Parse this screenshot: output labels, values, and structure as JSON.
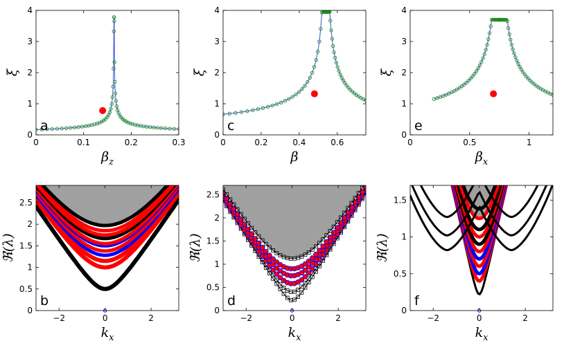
{
  "figure_title": "",
  "chart_data": [
    {
      "panel": "a",
      "type": "scatter",
      "xlabel": "β",
      "xlabel_sub": "z",
      "ylabel": "ξ",
      "xlim": [
        0,
        0.3
      ],
      "ylim": [
        0,
        4
      ],
      "xticks": [
        "0",
        "0.1",
        "0.2",
        "0.3"
      ],
      "yticks": [
        "0",
        "1",
        "2",
        "3",
        "4"
      ],
      "critical_x": 0.164,
      "peak_y": 3.78,
      "marker": {
        "x": 0.14,
        "y": 0.78
      },
      "series": [
        {
          "name": "xi",
          "color": "#3c50e0",
          "marker_color": "#228b22",
          "style": "line+circles"
        }
      ],
      "curve_params": {
        "amplitude": 0.125,
        "exponent": 0.5,
        "n_points": 60
      }
    },
    {
      "panel": "c",
      "type": "scatter",
      "xlabel": "β",
      "xlabel_sub": "",
      "ylabel": "ξ",
      "xlim": [
        0,
        0.75
      ],
      "ylim": [
        0,
        4
      ],
      "xticks": [
        "0",
        "0.2",
        "0.4",
        "0.6"
      ],
      "yticks": [
        "0",
        "1",
        "2",
        "3",
        "4"
      ],
      "critical_x": 0.54,
      "peak_y": 3.95,
      "marker": {
        "x": 0.48,
        "y": 1.32
      },
      "series": [
        {
          "name": "xi",
          "color": "#3c50e0",
          "marker_color": "#228b22",
          "style": "line+circles"
        }
      ],
      "curve_params": {
        "amplitude": 0.55,
        "exponent": 0.55,
        "n_points": 70
      }
    },
    {
      "panel": "e",
      "type": "scatter",
      "xlabel": "β",
      "xlabel_sub": "x",
      "ylabel": "ξ",
      "xlim": [
        0,
        1.2
      ],
      "ylim": [
        0,
        4
      ],
      "xticks": [
        "0",
        "0.5",
        "1"
      ],
      "yticks": [
        "0",
        "1",
        "2",
        "3",
        "4"
      ],
      "critical_x": 0.75,
      "peak_y": 3.7,
      "x_start": 0.2,
      "marker": {
        "x": 0.7,
        "y": 1.32
      },
      "series": [
        {
          "name": "xi",
          "color": "#3c50e0",
          "marker_color": "#228b22",
          "style": "line+circles"
        }
      ],
      "curve_params": {
        "amplitude": 0.75,
        "exponent": 0.55,
        "n_points": 90
      }
    },
    {
      "panel": "b",
      "type": "area",
      "xlabel": "k",
      "xlabel_sub": "x",
      "ylabel": "ℜ(λ)",
      "xlim": [
        -3,
        3.2
      ],
      "ylim": [
        0,
        2.9
      ],
      "xticks": [
        "−2",
        "0",
        "2"
      ],
      "yticks": [
        "0",
        "0.5",
        "1",
        "1.5",
        "2",
        "2.5"
      ],
      "continuum_start": 2.0,
      "continuum_color": "#a0a0a0",
      "bands": [
        {
          "gap": 0.5,
          "color": "#000000",
          "width": 6
        },
        {
          "gap": 1.0,
          "color": "#ff0000",
          "width": 6
        },
        {
          "gap": 1.15,
          "color": "#ff0000",
          "width": 6
        },
        {
          "gap": 1.28,
          "color": "#0000ff",
          "width": 5
        },
        {
          "gap": 1.38,
          "color": "#ff0000",
          "width": 5
        },
        {
          "gap": 1.5,
          "color": "#0000ff",
          "width": 5
        },
        {
          "gap": 1.55,
          "color": "#ff0000",
          "width": 5
        },
        {
          "gap": 1.67,
          "color": "#000000",
          "width": 5
        },
        {
          "gap": 1.75,
          "color": "#ff0000",
          "width": 5
        },
        {
          "gap": 1.85,
          "color": "#ff0000",
          "width": 5
        },
        {
          "gap": 1.97,
          "color": "#000000",
          "width": 5
        }
      ]
    },
    {
      "panel": "d",
      "type": "area",
      "xlabel": "k",
      "xlabel_sub": "x",
      "ylabel": "ℜ(λ)",
      "xlim": [
        -3,
        3.2
      ],
      "ylim": [
        0,
        2.7
      ],
      "xticks": [
        "−2",
        "0",
        "2"
      ],
      "yticks": [
        "0",
        "0.5",
        "1",
        "1.5",
        "2",
        "2.5"
      ],
      "continuum_start": 1.12,
      "continuum_color": "#a0a0a0",
      "bands": [
        {
          "gap": 0.22,
          "color": "#000000",
          "width": 1,
          "marker": "open-square"
        },
        {
          "gap": 0.4,
          "color": "#000000",
          "width": 1,
          "marker": "open-square"
        },
        {
          "gap": 0.58,
          "color": "#0000ff",
          "width": 2,
          "marker": "red-circle"
        },
        {
          "gap": 0.75,
          "color": "#0000ff",
          "width": 2,
          "marker": "red-circle"
        },
        {
          "gap": 0.9,
          "color": "#0000ff",
          "width": 2,
          "marker": "red-circle"
        },
        {
          "gap": 1.12,
          "color": "#000000",
          "width": 1,
          "marker": "open-square"
        }
      ]
    },
    {
      "panel": "f",
      "type": "area",
      "xlabel": "k",
      "xlabel_sub": "x",
      "ylabel": "ℜ(λ)",
      "xlim": [
        -3,
        3.2
      ],
      "ylim": [
        0,
        1.7
      ],
      "xticks": [
        "−2",
        "0",
        "2"
      ],
      "yticks": [
        "0",
        "0.5",
        "1",
        "1.5"
      ],
      "continuum_start": 1.25,
      "continuum_color": "#a0a0a0",
      "bands": [
        {
          "gap": 0.22,
          "color": "#000000",
          "width": 3,
          "kind": "narrow"
        },
        {
          "gap": 0.4,
          "color": "#ff0000",
          "width": 5,
          "kind": "narrow"
        },
        {
          "gap": 0.5,
          "color": "#0000ff",
          "width": 5,
          "kind": "narrow"
        },
        {
          "gap": 0.6,
          "color": "#ff0000",
          "width": 5,
          "kind": "narrow"
        },
        {
          "gap": 0.7,
          "color": "#0000ff",
          "width": 5,
          "kind": "narrow"
        },
        {
          "gap": 0.8,
          "color": "#ff0000",
          "width": 5,
          "kind": "narrow"
        },
        {
          "gap": 0.9,
          "color": "#000000",
          "width": 5,
          "kind": "narrow"
        },
        {
          "gap": 1.0,
          "color": "#ff0000",
          "width": 5,
          "kind": "narrow"
        },
        {
          "gap": 1.1,
          "color": "#000000",
          "width": 5,
          "kind": "narrow"
        },
        {
          "gap": 1.25,
          "color": "#ff0000",
          "width": 5,
          "kind": "narrow"
        },
        {
          "gap": 1.38,
          "color": "#000000",
          "width": 5,
          "kind": "narrow"
        }
      ],
      "side_bands": [
        {
          "gap": 0.8,
          "color": "#000000",
          "width": 3
        },
        {
          "gap": 1.0,
          "color": "#000000",
          "width": 3
        },
        {
          "gap": 1.25,
          "color": "#000000",
          "width": 3
        }
      ]
    }
  ]
}
